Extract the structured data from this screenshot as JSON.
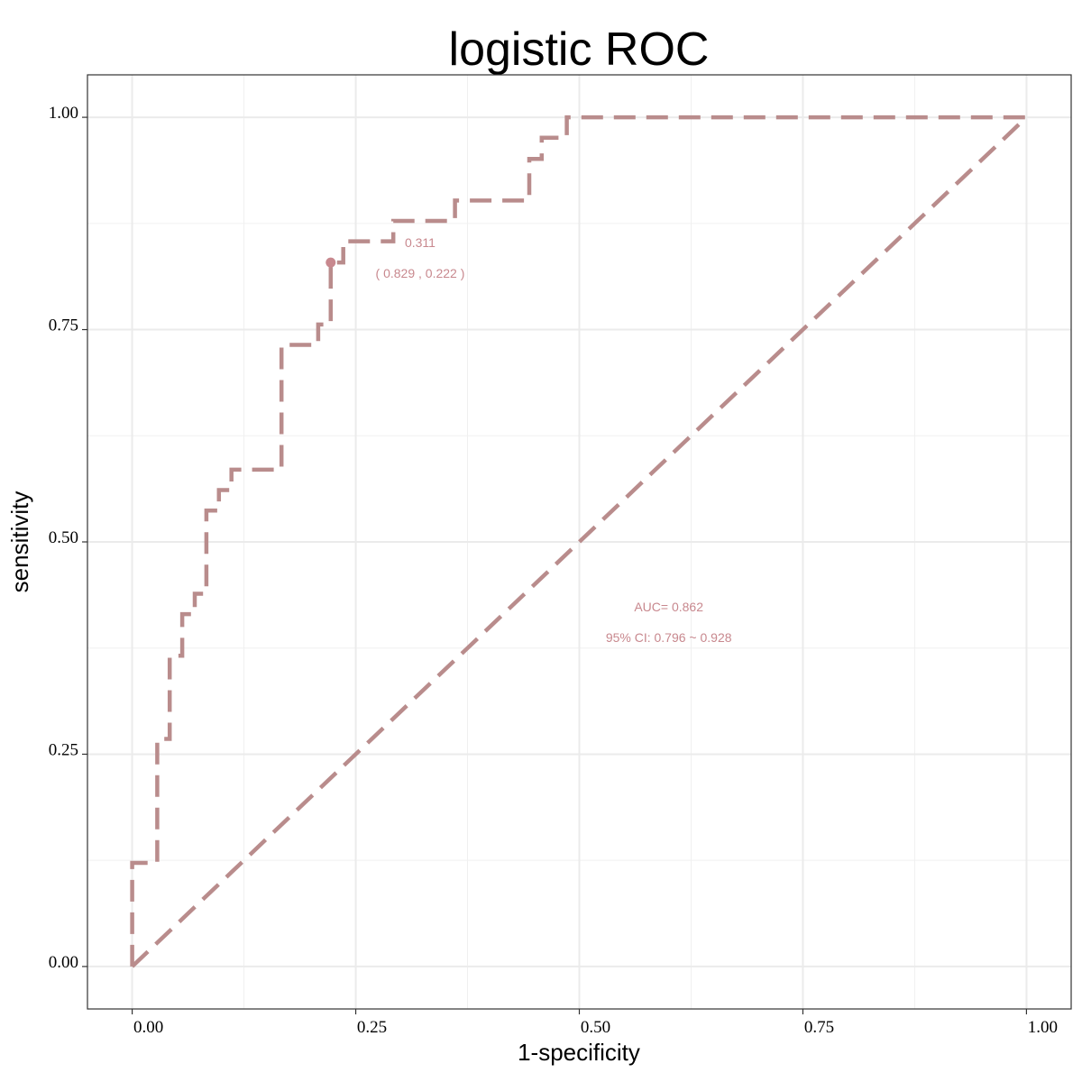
{
  "chart_data": {
    "type": "line",
    "title": "logistic ROC",
    "xlabel": "1-specificity",
    "ylabel": "sensitivity",
    "xlim": [
      -0.05,
      1.05
    ],
    "ylim": [
      -0.05,
      1.05
    ],
    "x_ticks": [
      0.0,
      0.25,
      0.5,
      0.75,
      1.0
    ],
    "y_ticks": [
      0.0,
      0.25,
      0.5,
      0.75,
      1.0
    ],
    "x_tick_labels": [
      "0.00",
      "0.25",
      "0.50",
      "0.75",
      "1.00"
    ],
    "y_tick_labels": [
      "0.00",
      "0.25",
      "0.50",
      "0.75",
      "1.00"
    ],
    "grid": true,
    "series": [
      {
        "style": "dashed",
        "color": "#b98c8c",
        "x": [
          0.0,
          0.0,
          0.028,
          0.028,
          0.042,
          0.042,
          0.056,
          0.056,
          0.07,
          0.07,
          0.083,
          0.083,
          0.097,
          0.097,
          0.111,
          0.111,
          0.167,
          0.167,
          0.208,
          0.208,
          0.222,
          0.222,
          0.236,
          0.236,
          0.264,
          0.264,
          0.292,
          0.292,
          0.361,
          0.361,
          0.431,
          0.431,
          0.444,
          0.444,
          0.458,
          0.458,
          0.486,
          0.486,
          1.0
        ],
        "y": [
          0.0,
          0.122,
          0.122,
          0.268,
          0.268,
          0.366,
          0.366,
          0.415,
          0.415,
          0.439,
          0.439,
          0.537,
          0.537,
          0.561,
          0.561,
          0.585,
          0.585,
          0.732,
          0.732,
          0.756,
          0.756,
          0.829,
          0.829,
          0.854,
          0.854,
          0.854,
          0.854,
          0.878,
          0.878,
          0.902,
          0.902,
          0.902,
          0.902,
          0.951,
          0.951,
          0.976,
          0.976,
          1.0,
          1.0
        ]
      },
      {
        "style": "dashed",
        "color": "#b98c8c",
        "x": [
          0.0,
          1.0
        ],
        "y": [
          0.0,
          1.0
        ]
      }
    ],
    "marker": {
      "x": 0.222,
      "y": 0.829,
      "color": "#c8888e"
    },
    "annotations": [
      {
        "text": "0.311",
        "x": 0.322,
        "y": 0.847
      },
      {
        "text": "( 0.829 , 0.222 )",
        "x": 0.322,
        "y": 0.811
      },
      {
        "text": "AUC= 0.862",
        "x": 0.6,
        "y": 0.418
      },
      {
        "text": "95% CI:  0.796 ~ 0.928",
        "x": 0.6,
        "y": 0.382
      }
    ],
    "annotation_color": "#c8888e"
  }
}
